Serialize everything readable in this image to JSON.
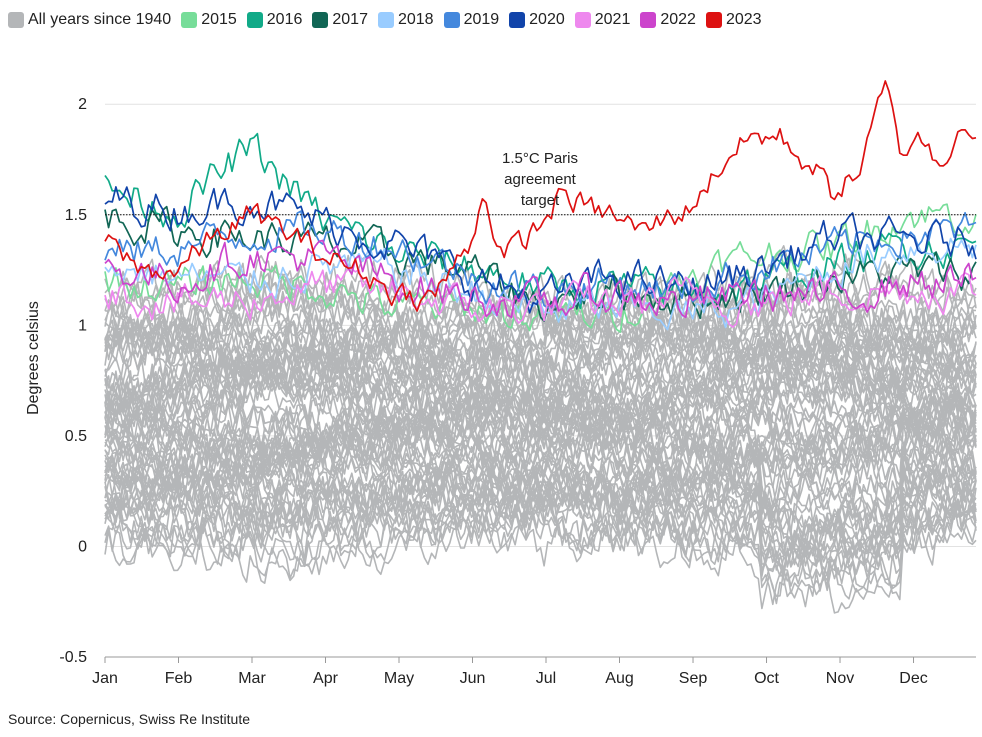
{
  "legend": [
    {
      "label": "All years since 1940",
      "color": "#b4b6b8"
    },
    {
      "label": "2015",
      "color": "#77dd99"
    },
    {
      "label": "2016",
      "color": "#11aa88"
    },
    {
      "label": "2017",
      "color": "#116655"
    },
    {
      "label": "2018",
      "color": "#99ccff"
    },
    {
      "label": "2019",
      "color": "#4488dd"
    },
    {
      "label": "2020",
      "color": "#1144aa"
    },
    {
      "label": "2021",
      "color": "#ee88ee"
    },
    {
      "label": "2022",
      "color": "#cc44cc"
    },
    {
      "label": "2023",
      "color": "#dd1111"
    }
  ],
  "source": "Source: Copernicus, Swiss Re Institute",
  "chart_data": {
    "type": "line",
    "title": "",
    "xlabel": "",
    "ylabel": "Degrees celsius",
    "ylim": [
      -0.5,
      2.2
    ],
    "yticks": [
      "-0.5",
      "0",
      "0.5",
      "1",
      "1.5",
      "2"
    ],
    "months": [
      "Jan",
      "Feb",
      "Mar",
      "Apr",
      "May",
      "Jun",
      "Jul",
      "Aug",
      "Sep",
      "Oct",
      "Nov",
      "Dec"
    ],
    "grid": "horizontal",
    "legend_position": "top",
    "target": {
      "value": 1.5,
      "label": [
        "1.5°C Paris",
        "agreement",
        "target"
      ]
    },
    "background_series": {
      "name": "All years since 1940",
      "color": "#b4b6b8",
      "count": 75,
      "typical_range": [
        -0.4,
        1.3
      ]
    },
    "series": [
      {
        "name": "2015",
        "color": "#77dd99",
        "points": [
          [
            0,
            1.2
          ],
          [
            1,
            1.17
          ],
          [
            2,
            1.22
          ],
          [
            3,
            1.17
          ],
          [
            4,
            1.08
          ],
          [
            5,
            1.08
          ],
          [
            6,
            1.03
          ],
          [
            7,
            1.05
          ],
          [
            8,
            1.22
          ],
          [
            9,
            1.32
          ],
          [
            10,
            1.35
          ],
          [
            11,
            1.5
          ]
        ]
      },
      {
        "name": "2016",
        "color": "#11aa88",
        "points": [
          [
            0,
            1.62
          ],
          [
            1,
            1.52
          ],
          [
            2,
            1.8
          ],
          [
            3,
            1.48
          ],
          [
            4,
            1.33
          ],
          [
            5,
            1.27
          ],
          [
            6,
            1.17
          ],
          [
            7,
            1.18
          ],
          [
            8,
            1.14
          ],
          [
            9,
            1.2
          ],
          [
            10,
            1.27
          ],
          [
            11,
            1.36
          ]
        ]
      },
      {
        "name": "2017",
        "color": "#116655",
        "points": [
          [
            0,
            1.5
          ],
          [
            1,
            1.43
          ],
          [
            2,
            1.4
          ],
          [
            3,
            1.37
          ],
          [
            4,
            1.32
          ],
          [
            5,
            1.25
          ],
          [
            6,
            1.1
          ],
          [
            7,
            1.16
          ],
          [
            8,
            1.12
          ],
          [
            9,
            1.15
          ],
          [
            10,
            1.22
          ],
          [
            11,
            1.24
          ]
        ]
      },
      {
        "name": "2018",
        "color": "#99ccff",
        "points": [
          [
            0,
            1.27
          ],
          [
            1,
            1.22
          ],
          [
            2,
            1.2
          ],
          [
            3,
            1.27
          ],
          [
            4,
            1.25
          ],
          [
            5,
            1.15
          ],
          [
            6,
            1.06
          ],
          [
            7,
            1.08
          ],
          [
            8,
            1.05
          ],
          [
            9,
            1.1
          ],
          [
            10,
            1.26
          ],
          [
            11,
            1.36
          ]
        ]
      },
      {
        "name": "2019",
        "color": "#4488dd",
        "points": [
          [
            0,
            1.32
          ],
          [
            1,
            1.35
          ],
          [
            2,
            1.42
          ],
          [
            3,
            1.43
          ],
          [
            4,
            1.36
          ],
          [
            5,
            1.23
          ],
          [
            6,
            1.15
          ],
          [
            7,
            1.2
          ],
          [
            8,
            1.15
          ],
          [
            9,
            1.26
          ],
          [
            10,
            1.34
          ],
          [
            11,
            1.42
          ]
        ]
      },
      {
        "name": "2020",
        "color": "#1144aa",
        "points": [
          [
            0,
            1.58
          ],
          [
            1,
            1.52
          ],
          [
            2,
            1.58
          ],
          [
            3,
            1.47
          ],
          [
            4,
            1.37
          ],
          [
            5,
            1.22
          ],
          [
            6,
            1.12
          ],
          [
            7,
            1.22
          ],
          [
            8,
            1.17
          ],
          [
            9,
            1.25
          ],
          [
            10,
            1.4
          ],
          [
            11,
            1.38
          ]
        ]
      },
      {
        "name": "2021",
        "color": "#ee88ee",
        "points": [
          [
            0,
            1.16
          ],
          [
            1,
            1.1
          ],
          [
            2,
            1.12
          ],
          [
            3,
            1.18
          ],
          [
            4,
            1.15
          ],
          [
            5,
            1.08
          ],
          [
            6,
            1.08
          ],
          [
            7,
            1.1
          ],
          [
            8,
            1.13
          ],
          [
            9,
            1.1
          ],
          [
            10,
            1.15
          ],
          [
            11,
            1.16
          ]
        ]
      },
      {
        "name": "2022",
        "color": "#cc44cc",
        "points": [
          [
            0,
            1.27
          ],
          [
            1,
            1.2
          ],
          [
            2,
            1.32
          ],
          [
            3,
            1.3
          ],
          [
            4,
            1.2
          ],
          [
            5,
            1.13
          ],
          [
            6,
            1.1
          ],
          [
            7,
            1.14
          ],
          [
            8,
            1.1
          ],
          [
            9,
            1.15
          ],
          [
            10,
            1.12
          ],
          [
            11,
            1.2
          ]
        ]
      },
      {
        "name": "2023",
        "color": "#dd1111",
        "points": [
          [
            0,
            1.38
          ],
          [
            0.5,
            1.25
          ],
          [
            1,
            1.25
          ],
          [
            1.5,
            1.4
          ],
          [
            2,
            1.5
          ],
          [
            2.5,
            1.42
          ],
          [
            3,
            1.32
          ],
          [
            3.5,
            1.25
          ],
          [
            4,
            1.15
          ],
          [
            4.5,
            1.12
          ],
          [
            5,
            1.35
          ],
          [
            5.2,
            1.6
          ],
          [
            5.5,
            1.3
          ],
          [
            6,
            1.45
          ],
          [
            6.3,
            1.6
          ],
          [
            6.7,
            1.52
          ],
          [
            7,
            1.5
          ],
          [
            7.4,
            1.42
          ],
          [
            7.7,
            1.48
          ],
          [
            8,
            1.52
          ],
          [
            8.2,
            1.6
          ],
          [
            8.6,
            1.78
          ],
          [
            8.9,
            1.85
          ],
          [
            9.3,
            1.85
          ],
          [
            9.8,
            1.7
          ],
          [
            10,
            1.6
          ],
          [
            10.4,
            1.7
          ],
          [
            10.75,
            2.07
          ],
          [
            11,
            1.75
          ],
          [
            11.2,
            1.9
          ],
          [
            11.5,
            1.7
          ],
          [
            11.8,
            1.95
          ],
          [
            12,
            1.87
          ]
        ]
      }
    ]
  }
}
